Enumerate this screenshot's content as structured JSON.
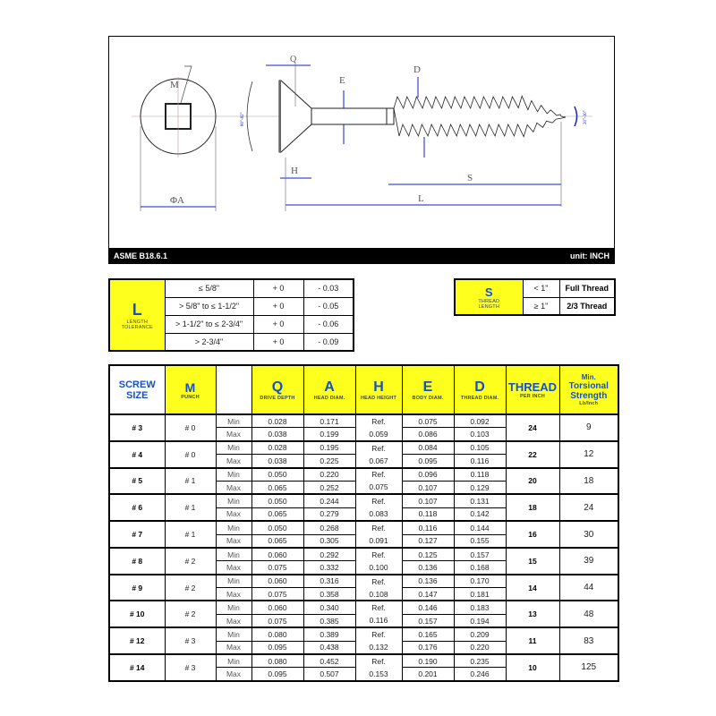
{
  "drawing": {
    "labels": {
      "M": "M",
      "A": "ΦA",
      "Q": "Q",
      "E": "E",
      "H": "H",
      "D": "D",
      "S": "S",
      "L": "L",
      "head_angle": "80°-82°",
      "point_angle": "20°-30°"
    }
  },
  "banner": {
    "standard": "ASME B18.6.1",
    "unit": "unit: INCH"
  },
  "length_tolerance": {
    "letter": "L",
    "caption_1": "LENGTH",
    "caption_2": "TOLERANCE",
    "rows": [
      {
        "range": "≤ 5/8\"",
        "plus": "+ 0",
        "minus": "- 0.03"
      },
      {
        "range": "> 5/8\" to ≤ 1-1/2\"",
        "plus": "+ 0",
        "minus": "- 0.05"
      },
      {
        "range": "> 1-1/2\" to ≤ 2-3/4\"",
        "plus": "+ 0",
        "minus": "- 0.06"
      },
      {
        "range": "> 2-3/4\"",
        "plus": "+ 0",
        "minus": "- 0.09"
      }
    ]
  },
  "thread_length": {
    "letter": "S",
    "caption_1": "THREAD",
    "caption_2": "LENGTH",
    "rows": [
      {
        "range": "< 1\"",
        "value": "Full Thread"
      },
      {
        "range": "≥ 1\"",
        "value": "2/3 Thread"
      }
    ]
  },
  "main_table": {
    "headers": {
      "size_1": "SCREW",
      "size_2": "SIZE",
      "m": "M",
      "m_sub": "PUNCH",
      "q": "Q",
      "q_sub": "DRIVE DEPTH",
      "a": "A",
      "a_sub": "HEAD DIAM.",
      "h": "H",
      "h_sub": "HEAD HEIGHT",
      "e": "E",
      "e_sub": "BODY DIAM.",
      "d": "D",
      "d_sub": "THREAD DIAM.",
      "thread": "THREAD",
      "thread_sub": "PER INCH",
      "str_1": "Min.",
      "str_2": "Torsional",
      "str_3": "Strength",
      "str_sub": "Lb/Inch"
    },
    "min_label": "Min",
    "max_label": "Max",
    "ref_label": "Ref.",
    "rows": [
      {
        "size": "# 3",
        "m": "# 0",
        "q": [
          "0.028",
          "0.038"
        ],
        "a": [
          "0.171",
          "0.199"
        ],
        "h": "0.059",
        "e": [
          "0.075",
          "0.086"
        ],
        "d": [
          "0.092",
          "0.103"
        ],
        "thread": "24",
        "strength": "9"
      },
      {
        "size": "# 4",
        "m": "# 0",
        "q": [
          "0.028",
          "0.038"
        ],
        "a": [
          "0.195",
          "0.225"
        ],
        "h": "0.067",
        "e": [
          "0.084",
          "0.095"
        ],
        "d": [
          "0.105",
          "0.116"
        ],
        "thread": "22",
        "strength": "12"
      },
      {
        "size": "# 5",
        "m": "# 1",
        "q": [
          "0.050",
          "0.065"
        ],
        "a": [
          "0.220",
          "0.252"
        ],
        "h": "0.075",
        "e": [
          "0.096",
          "0.107"
        ],
        "d": [
          "0.118",
          "0.129"
        ],
        "thread": "20",
        "strength": "18"
      },
      {
        "size": "# 6",
        "m": "# 1",
        "q": [
          "0.050",
          "0.065"
        ],
        "a": [
          "0.244",
          "0.279"
        ],
        "h": "0.083",
        "e": [
          "0.107",
          "0.118"
        ],
        "d": [
          "0.131",
          "0.142"
        ],
        "thread": "18",
        "strength": "24"
      },
      {
        "size": "# 7",
        "m": "# 1",
        "q": [
          "0.050",
          "0.065"
        ],
        "a": [
          "0.268",
          "0.305"
        ],
        "h": "0.091",
        "e": [
          "0.116",
          "0.127"
        ],
        "d": [
          "0.144",
          "0.155"
        ],
        "thread": "16",
        "strength": "30"
      },
      {
        "size": "# 8",
        "m": "# 2",
        "q": [
          "0.060",
          "0.075"
        ],
        "a": [
          "0.292",
          "0.332"
        ],
        "h": "0.100",
        "e": [
          "0.125",
          "0.136"
        ],
        "d": [
          "0.157",
          "0.168"
        ],
        "thread": "15",
        "strength": "39"
      },
      {
        "size": "# 9",
        "m": "# 2",
        "q": [
          "0.060",
          "0.075"
        ],
        "a": [
          "0.316",
          "0.358"
        ],
        "h": "0.108",
        "e": [
          "0.136",
          "0.147"
        ],
        "d": [
          "0.170",
          "0.181"
        ],
        "thread": "14",
        "strength": "44"
      },
      {
        "size": "# 10",
        "m": "# 2",
        "q": [
          "0.060",
          "0.075"
        ],
        "a": [
          "0.340",
          "0.385"
        ],
        "h": "0.116",
        "e": [
          "0.146",
          "0.157"
        ],
        "d": [
          "0.183",
          "0.194"
        ],
        "thread": "13",
        "strength": "48"
      },
      {
        "size": "# 12",
        "m": "# 3",
        "q": [
          "0.080",
          "0.095"
        ],
        "a": [
          "0.389",
          "0.438"
        ],
        "h": "0.132",
        "e": [
          "0.165",
          "0.176"
        ],
        "d": [
          "0.209",
          "0.220"
        ],
        "thread": "11",
        "strength": "83"
      },
      {
        "size": "# 14",
        "m": "# 3",
        "q": [
          "0.080",
          "0.095"
        ],
        "a": [
          "0.452",
          "0.507"
        ],
        "h": "0.153",
        "e": [
          "0.190",
          "0.201"
        ],
        "d": [
          "0.235",
          "0.246"
        ],
        "thread": "10",
        "strength": "125"
      }
    ]
  }
}
